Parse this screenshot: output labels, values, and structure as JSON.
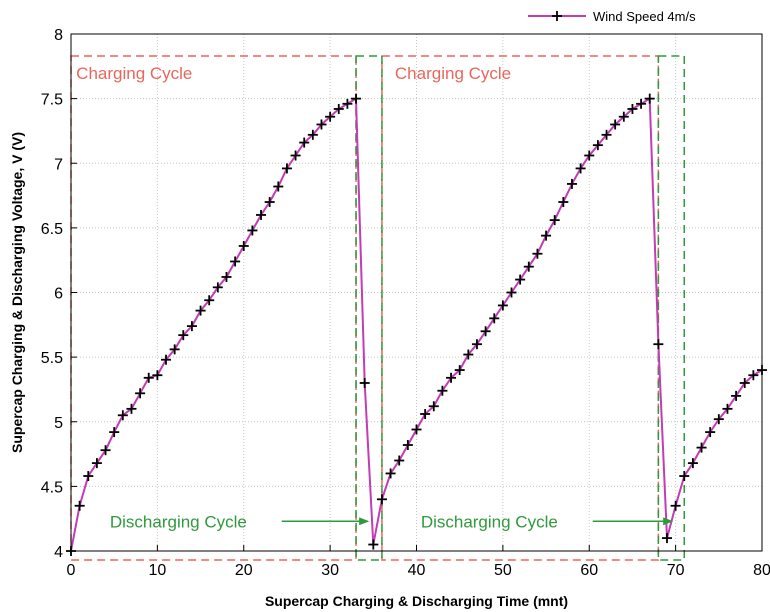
{
  "chart_data": {
    "type": "line",
    "xlabel": "Supercap Charging & Discharging Time (mnt)",
    "ylabel": "Supercap Charging & Discharging Voltage, V (V)",
    "xlim": [
      0,
      80
    ],
    "ylim": [
      4,
      8
    ],
    "xticks": [
      "0",
      "10",
      "20",
      "30",
      "40",
      "50",
      "60",
      "70",
      "80"
    ],
    "yticks": [
      "4",
      "4.5",
      "5",
      "5.5",
      "6",
      "6.5",
      "7",
      "7.5",
      "8"
    ],
    "grid": true,
    "legend_position": "top-right",
    "series": [
      {
        "name": "Wind Speed 4m/s",
        "color": "#c23cb4",
        "marker": "plus",
        "x": [
          0,
          1,
          2,
          3,
          4,
          5,
          6,
          7,
          8,
          9,
          10,
          11,
          12,
          13,
          14,
          15,
          16,
          17,
          18,
          19,
          20,
          21,
          22,
          23,
          24,
          25,
          26,
          27,
          28,
          29,
          30,
          31,
          32,
          33,
          34,
          35,
          36,
          37,
          38,
          39,
          40,
          41,
          42,
          43,
          44,
          45,
          46,
          47,
          48,
          49,
          50,
          51,
          52,
          53,
          54,
          55,
          56,
          57,
          58,
          59,
          60,
          61,
          62,
          63,
          64,
          65,
          66,
          67,
          68,
          69,
          70,
          71,
          72,
          73,
          74,
          75,
          76,
          77,
          78,
          79,
          80
        ],
        "y": [
          4.0,
          4.35,
          4.58,
          4.68,
          4.78,
          4.92,
          5.05,
          5.1,
          5.22,
          5.34,
          5.36,
          5.48,
          5.56,
          5.67,
          5.74,
          5.86,
          5.94,
          6.04,
          6.12,
          6.24,
          6.36,
          6.48,
          6.6,
          6.7,
          6.82,
          6.96,
          7.06,
          7.16,
          7.22,
          7.3,
          7.36,
          7.42,
          7.46,
          7.5,
          5.3,
          4.05,
          4.4,
          4.6,
          4.7,
          4.82,
          4.94,
          5.06,
          5.12,
          5.24,
          5.34,
          5.4,
          5.52,
          5.6,
          5.7,
          5.8,
          5.9,
          6.0,
          6.1,
          6.2,
          6.3,
          6.44,
          6.56,
          6.7,
          6.84,
          6.96,
          7.06,
          7.14,
          7.22,
          7.3,
          7.36,
          7.42,
          7.46,
          7.5,
          5.6,
          4.1,
          4.35,
          4.58,
          4.68,
          4.8,
          4.92,
          5.02,
          5.1,
          5.2,
          5.3,
          5.36,
          5.4
        ]
      }
    ],
    "annotations": [
      {
        "text": "Charging Cycle",
        "color": "#e8675c",
        "box_x": [
          0,
          33
        ],
        "box_y": [
          3.93,
          7.83
        ],
        "label_x": 0.6,
        "label_y": 7.65
      },
      {
        "text": "Charging Cycle",
        "color": "#e8675c",
        "box_x": [
          36,
          68
        ],
        "box_y": [
          3.93,
          7.83
        ],
        "label_x": 37.5,
        "label_y": 7.65
      },
      {
        "text": "Discharging Cycle",
        "color": "#2e9a3c",
        "box_x": [
          33,
          36
        ],
        "box_y": [
          3.93,
          7.83
        ],
        "label_x": 4.5,
        "label_y": 4.18,
        "arrow_from_x": 24.4,
        "arrow_to_x": 34.4,
        "arrow_y": 4.23
      },
      {
        "text": "Discharging Cycle",
        "color": "#2e9a3c",
        "box_x": [
          68,
          71
        ],
        "box_y": [
          3.93,
          7.83
        ],
        "label_x": 40.5,
        "label_y": 4.18,
        "arrow_from_x": 60.4,
        "arrow_to_x": 69.6,
        "arrow_y": 4.23
      }
    ]
  }
}
